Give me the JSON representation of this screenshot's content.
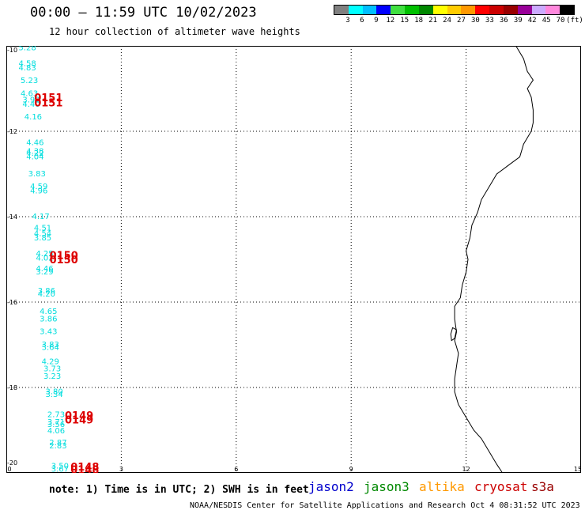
{
  "header": {
    "title": "00:00 – 11:59 UTC 10/02/2023",
    "subtitle": "12 hour collection of altimeter wave heights"
  },
  "colorbar": {
    "colors": [
      "#808080",
      "#00ffff",
      "#00bfff",
      "#0000ff",
      "#40e040",
      "#00c000",
      "#008800",
      "#ffff00",
      "#ffcc00",
      "#ff9900",
      "#ff0000",
      "#cc0000",
      "#990000",
      "#990099",
      "#ccaaff",
      "#ff88dd",
      "#000000"
    ],
    "labels": [
      "3",
      "6",
      "9",
      "12",
      "15",
      "18",
      "21",
      "24",
      "27",
      "30",
      "33",
      "36",
      "39",
      "42",
      "45",
      "70",
      "(ft)"
    ]
  },
  "axes": {
    "x_ticks": [
      "0",
      "3",
      "6",
      "9",
      "12",
      "15"
    ],
    "y_ticks": [
      "-10",
      "-12",
      "-14",
      "-16",
      "-18",
      "-20"
    ]
  },
  "chart_data": {
    "type": "scatter",
    "xlim": [
      0,
      15
    ],
    "ylim": [
      -20,
      -10
    ],
    "grid": true,
    "wave_heights_ft": [
      {
        "x": 0.55,
        "y": -10.03,
        "label": "5.28"
      },
      {
        "x": 0.55,
        "y": -10.4,
        "label": "4.58"
      },
      {
        "x": 0.55,
        "y": -10.5,
        "label": "4.83"
      },
      {
        "x": 0.6,
        "y": -10.8,
        "label": "5.23"
      },
      {
        "x": 0.6,
        "y": -11.1,
        "label": "4.63"
      },
      {
        "x": 0.65,
        "y": -11.25,
        "label": "3.92"
      },
      {
        "x": 0.65,
        "y": -11.35,
        "label": "4.40"
      },
      {
        "x": 0.7,
        "y": -11.65,
        "label": "4.16"
      },
      {
        "x": 0.75,
        "y": -12.25,
        "label": "4.46"
      },
      {
        "x": 0.75,
        "y": -12.45,
        "label": "4.38"
      },
      {
        "x": 0.75,
        "y": -12.5,
        "label": "4.22"
      },
      {
        "x": 0.75,
        "y": -12.58,
        "label": "4.04"
      },
      {
        "x": 0.8,
        "y": -12.98,
        "label": "3.83"
      },
      {
        "x": 0.85,
        "y": -13.28,
        "label": "4.59"
      },
      {
        "x": 0.85,
        "y": -13.38,
        "label": "4.96"
      },
      {
        "x": 0.9,
        "y": -13.98,
        "label": "4.17"
      },
      {
        "x": 0.95,
        "y": -14.25,
        "label": "4.51"
      },
      {
        "x": 0.95,
        "y": -14.38,
        "label": "4.54"
      },
      {
        "x": 0.95,
        "y": -14.48,
        "label": "3.85"
      },
      {
        "x": 1.0,
        "y": -14.85,
        "label": "4.25"
      },
      {
        "x": 1.0,
        "y": -14.95,
        "label": "4.02"
      },
      {
        "x": 1.0,
        "y": -15.2,
        "label": "4.46"
      },
      {
        "x": 1.0,
        "y": -15.28,
        "label": "3.29"
      },
      {
        "x": 1.05,
        "y": -15.72,
        "label": "3.86"
      },
      {
        "x": 1.05,
        "y": -15.8,
        "label": "4.20"
      },
      {
        "x": 1.1,
        "y": -16.2,
        "label": "4.65"
      },
      {
        "x": 1.1,
        "y": -16.38,
        "label": "3.86"
      },
      {
        "x": 1.1,
        "y": -16.68,
        "label": "3.43"
      },
      {
        "x": 1.15,
        "y": -16.98,
        "label": "3.83"
      },
      {
        "x": 1.15,
        "y": -17.05,
        "label": "3.64"
      },
      {
        "x": 1.15,
        "y": -17.38,
        "label": "4.29"
      },
      {
        "x": 1.2,
        "y": -17.55,
        "label": "3.73"
      },
      {
        "x": 1.2,
        "y": -17.72,
        "label": "3.23"
      },
      {
        "x": 1.25,
        "y": -18.08,
        "label": "3.80"
      },
      {
        "x": 1.25,
        "y": -18.15,
        "label": "3.34"
      },
      {
        "x": 1.3,
        "y": -18.62,
        "label": "2.73"
      },
      {
        "x": 1.3,
        "y": -18.8,
        "label": "3.71"
      },
      {
        "x": 1.3,
        "y": -18.85,
        "label": "3.56"
      },
      {
        "x": 1.3,
        "y": -19.0,
        "label": "4.06"
      },
      {
        "x": 1.35,
        "y": -19.28,
        "label": "2.87"
      },
      {
        "x": 1.35,
        "y": -19.35,
        "label": "2.83"
      },
      {
        "x": 1.4,
        "y": -19.82,
        "label": "3.50"
      },
      {
        "x": 1.4,
        "y": -19.9,
        "label": "3.67"
      }
    ],
    "pass_times": [
      {
        "x": 1.1,
        "y": -11.2,
        "label": "0151"
      },
      {
        "x": 1.1,
        "y": -11.32,
        "label": "0151"
      },
      {
        "x": 1.5,
        "y": -14.9,
        "label": "0150"
      },
      {
        "x": 1.5,
        "y": -15.0,
        "label": "0150"
      },
      {
        "x": 1.9,
        "y": -18.65,
        "label": "0149"
      },
      {
        "x": 1.9,
        "y": -18.75,
        "label": "0149"
      },
      {
        "x": 2.05,
        "y": -19.85,
        "label": "0148"
      },
      {
        "x": 2.05,
        "y": -19.92,
        "label": "0148"
      }
    ],
    "coastline": [
      [
        13.3,
        -10.0
      ],
      [
        13.5,
        -10.3
      ],
      [
        13.6,
        -10.6
      ],
      [
        13.75,
        -10.8
      ],
      [
        13.6,
        -11.0
      ],
      [
        13.7,
        -11.2
      ],
      [
        13.75,
        -11.5
      ],
      [
        13.75,
        -11.8
      ],
      [
        13.7,
        -12.0
      ],
      [
        13.5,
        -12.3
      ],
      [
        13.4,
        -12.6
      ],
      [
        13.1,
        -12.8
      ],
      [
        12.8,
        -13.0
      ],
      [
        12.6,
        -13.3
      ],
      [
        12.4,
        -13.6
      ],
      [
        12.3,
        -13.9
      ],
      [
        12.15,
        -14.2
      ],
      [
        12.1,
        -14.5
      ],
      [
        12.0,
        -14.8
      ],
      [
        12.05,
        -15.0
      ],
      [
        12.0,
        -15.3
      ],
      [
        11.9,
        -15.6
      ],
      [
        11.85,
        -15.9
      ],
      [
        11.7,
        -16.1
      ],
      [
        11.7,
        -16.4
      ],
      [
        11.75,
        -16.7
      ],
      [
        11.7,
        -16.9
      ],
      [
        11.8,
        -17.2
      ],
      [
        11.75,
        -17.5
      ],
      [
        11.7,
        -17.8
      ],
      [
        11.7,
        -18.1
      ],
      [
        11.8,
        -18.4
      ],
      [
        12.0,
        -18.7
      ],
      [
        12.2,
        -19.0
      ],
      [
        12.4,
        -19.2
      ],
      [
        12.6,
        -19.5
      ],
      [
        12.8,
        -19.8
      ],
      [
        12.95,
        -20.0
      ]
    ],
    "island": [
      [
        11.65,
        -16.6
      ],
      [
        11.75,
        -16.65
      ],
      [
        11.7,
        -16.85
      ],
      [
        11.62,
        -16.9
      ],
      [
        11.6,
        -16.75
      ]
    ]
  },
  "legend": {
    "note": "note: 1) Time is in UTC; 2) SWH is in feet",
    "satellites": [
      {
        "name": "jason2",
        "color": "#0000cc"
      },
      {
        "name": "jason3",
        "color": "#008800"
      },
      {
        "name": "altika",
        "color": "#ff9900"
      },
      {
        "name": "cryosat",
        "color": "#cc0000"
      },
      {
        "name": "s3a",
        "color": "#990000"
      }
    ]
  },
  "footer": {
    "credit": "NOAA/NESDIS Center for Satellite Applications and Research   Oct  4 08:31:52 UTC 2023"
  }
}
